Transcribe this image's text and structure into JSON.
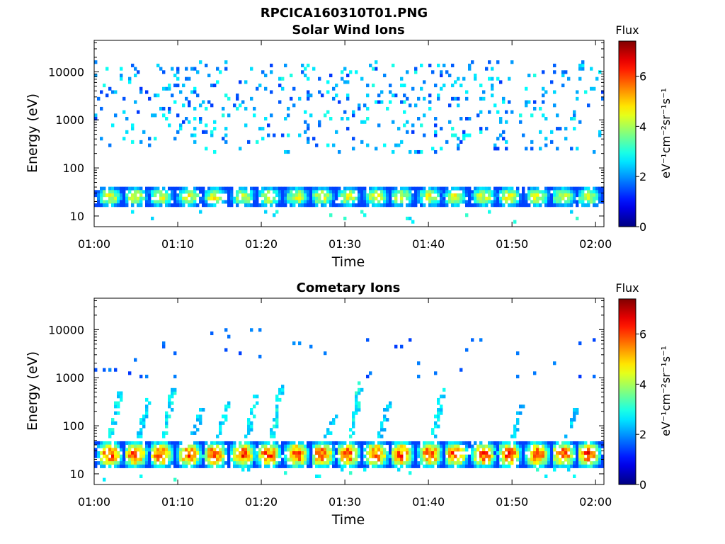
{
  "figure": {
    "title": "RPCICA160310T01.PNG",
    "background": "#ffffff"
  },
  "chart_data": [
    {
      "type": "heatmap",
      "title": "Solar Wind Ions",
      "xlabel": "Time",
      "ylabel": "Energy (eV)",
      "x_ticks": [
        "01:00",
        "01:10",
        "01:20",
        "01:30",
        "01:40",
        "01:50",
        "02:00"
      ],
      "x_range_minutes": [
        0,
        61
      ],
      "y_scale": "log",
      "y_ticks": [
        10,
        100,
        1000,
        10000
      ],
      "y_tick_labels": [
        "10",
        "100",
        "1000",
        "10000"
      ],
      "ylim": [
        6,
        45000
      ],
      "grid": false,
      "band": {
        "energy_range_ev": [
          18,
          38
        ],
        "cycle_minutes": 3.2,
        "peak_flux": 4.6,
        "bursts": []
      },
      "background_noise": {
        "energy_range_ev": [
          200,
          15000
        ],
        "flux_range": [
          1.3,
          3.0
        ]
      },
      "colorbar": {
        "title": "Flux",
        "label": "eV⁻¹cm⁻²sr⁻¹s⁻¹",
        "min": 0,
        "max": 7.4,
        "ticks": [
          0,
          2,
          4,
          6
        ],
        "colormap": "jet"
      }
    },
    {
      "type": "heatmap",
      "title": "Cometary Ions",
      "xlabel": "Time",
      "ylabel": "Energy (eV)",
      "x_ticks": [
        "01:00",
        "01:10",
        "01:20",
        "01:30",
        "01:40",
        "01:50",
        "02:00"
      ],
      "x_range_minutes": [
        0,
        61
      ],
      "y_scale": "log",
      "y_ticks": [
        10,
        100,
        1000,
        10000
      ],
      "y_tick_labels": [
        "10",
        "100",
        "1000",
        "10000"
      ],
      "ylim": [
        6,
        45000
      ],
      "grid": false,
      "band": {
        "energy_range_ev": [
          15,
          45
        ],
        "cycle_minutes": 3.2,
        "peak_flux": 6.2,
        "bursts": [
          {
            "start_min": 2.0,
            "energy_ev": [
              60,
              500
            ],
            "flux": 2.8
          },
          {
            "start_min": 5.2,
            "energy_ev": [
              60,
              350
            ],
            "flux": 2.6
          },
          {
            "start_min": 8.4,
            "energy_ev": [
              60,
              700
            ],
            "flux": 2.8
          },
          {
            "start_min": 11.6,
            "energy_ev": [
              60,
              200
            ],
            "flux": 2.5
          },
          {
            "start_min": 14.8,
            "energy_ev": [
              60,
              280
            ],
            "flux": 2.6
          },
          {
            "start_min": 18.0,
            "energy_ev": [
              60,
              420
            ],
            "flux": 2.7
          },
          {
            "start_min": 21.2,
            "energy_ev": [
              60,
              650
            ],
            "flux": 2.8
          },
          {
            "start_min": 27.6,
            "energy_ev": [
              60,
              150
            ],
            "flux": 2.5
          },
          {
            "start_min": 30.8,
            "energy_ev": [
              60,
              750
            ],
            "flux": 2.9
          },
          {
            "start_min": 34.0,
            "energy_ev": [
              60,
              300
            ],
            "flux": 2.5
          },
          {
            "start_min": 40.4,
            "energy_ev": [
              60,
              600
            ],
            "flux": 2.8
          },
          {
            "start_min": 49.9,
            "energy_ev": [
              60,
              250
            ],
            "flux": 2.5
          },
          {
            "start_min": 56.3,
            "energy_ev": [
              60,
              200
            ],
            "flux": 2.5
          }
        ]
      },
      "background_noise": {
        "energy_range_ev": [
          1000,
          10000
        ],
        "flux_range": [
          1.3,
          2.0
        ]
      },
      "colorbar": {
        "title": "Flux",
        "label": "eV⁻¹cm⁻²sr⁻¹s⁻¹",
        "min": 0,
        "max": 7.4,
        "ticks": [
          0,
          2,
          4,
          6
        ],
        "colormap": "jet"
      }
    }
  ]
}
